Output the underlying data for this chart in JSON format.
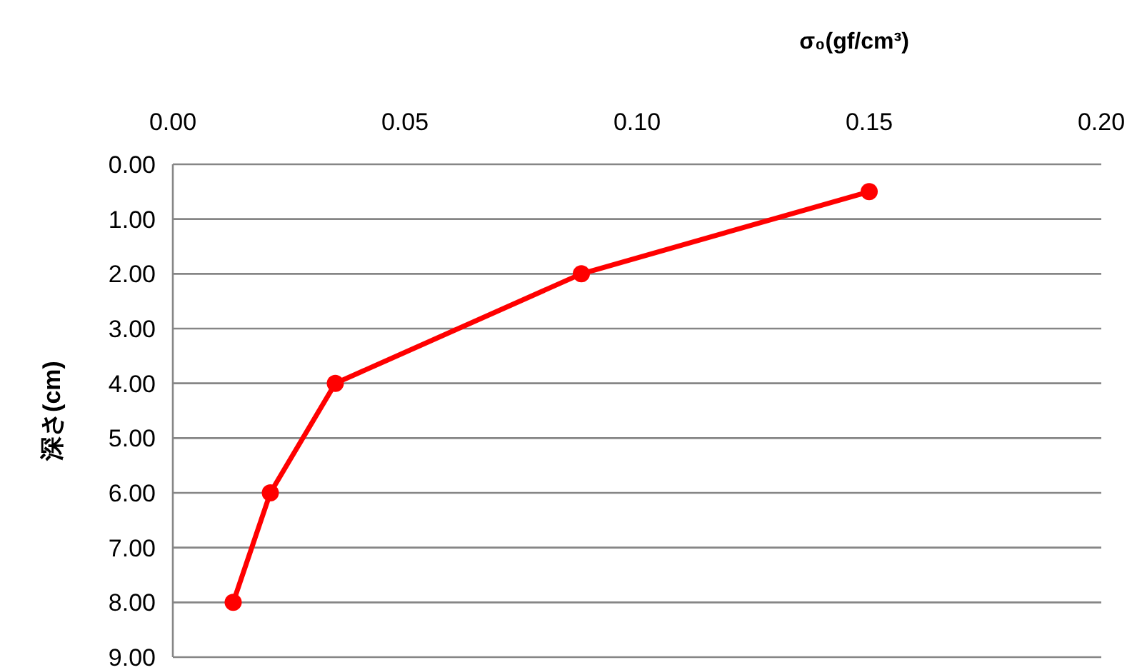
{
  "chart_data": {
    "type": "line",
    "xlabel": "σ₀(gf/cm³)",
    "ylabel": "深さ(cm)",
    "x": [
      0.15,
      0.088,
      0.035,
      0.021,
      0.013
    ],
    "series": [
      {
        "color": "#ff0000",
        "values": [
          0.5,
          2,
          4,
          6,
          8
        ]
      }
    ],
    "xlim": [
      0,
      0.2
    ],
    "ylim": [
      9,
      0
    ],
    "xticks": [
      {
        "value": 0,
        "label": "0.00"
      },
      {
        "value": 0.05,
        "label": "0.05"
      },
      {
        "value": 0.1,
        "label": "0.10"
      },
      {
        "value": 0.15,
        "label": "0.15"
      },
      {
        "value": 0.2,
        "label": "0.20"
      }
    ],
    "yticks": [
      {
        "value": 0,
        "label": "0.00"
      },
      {
        "value": 1,
        "label": "1.00"
      },
      {
        "value": 2,
        "label": "2.00"
      },
      {
        "value": 3,
        "label": "3.00"
      },
      {
        "value": 4,
        "label": "4.00"
      },
      {
        "value": 5,
        "label": "5.00"
      },
      {
        "value": 6,
        "label": "6.00"
      },
      {
        "value": 7,
        "label": "7.00"
      },
      {
        "value": 8,
        "label": "8.00"
      },
      {
        "value": 9,
        "label": "9.00"
      }
    ],
    "grid": "y",
    "marker": "circle",
    "line_style": "solid"
  }
}
